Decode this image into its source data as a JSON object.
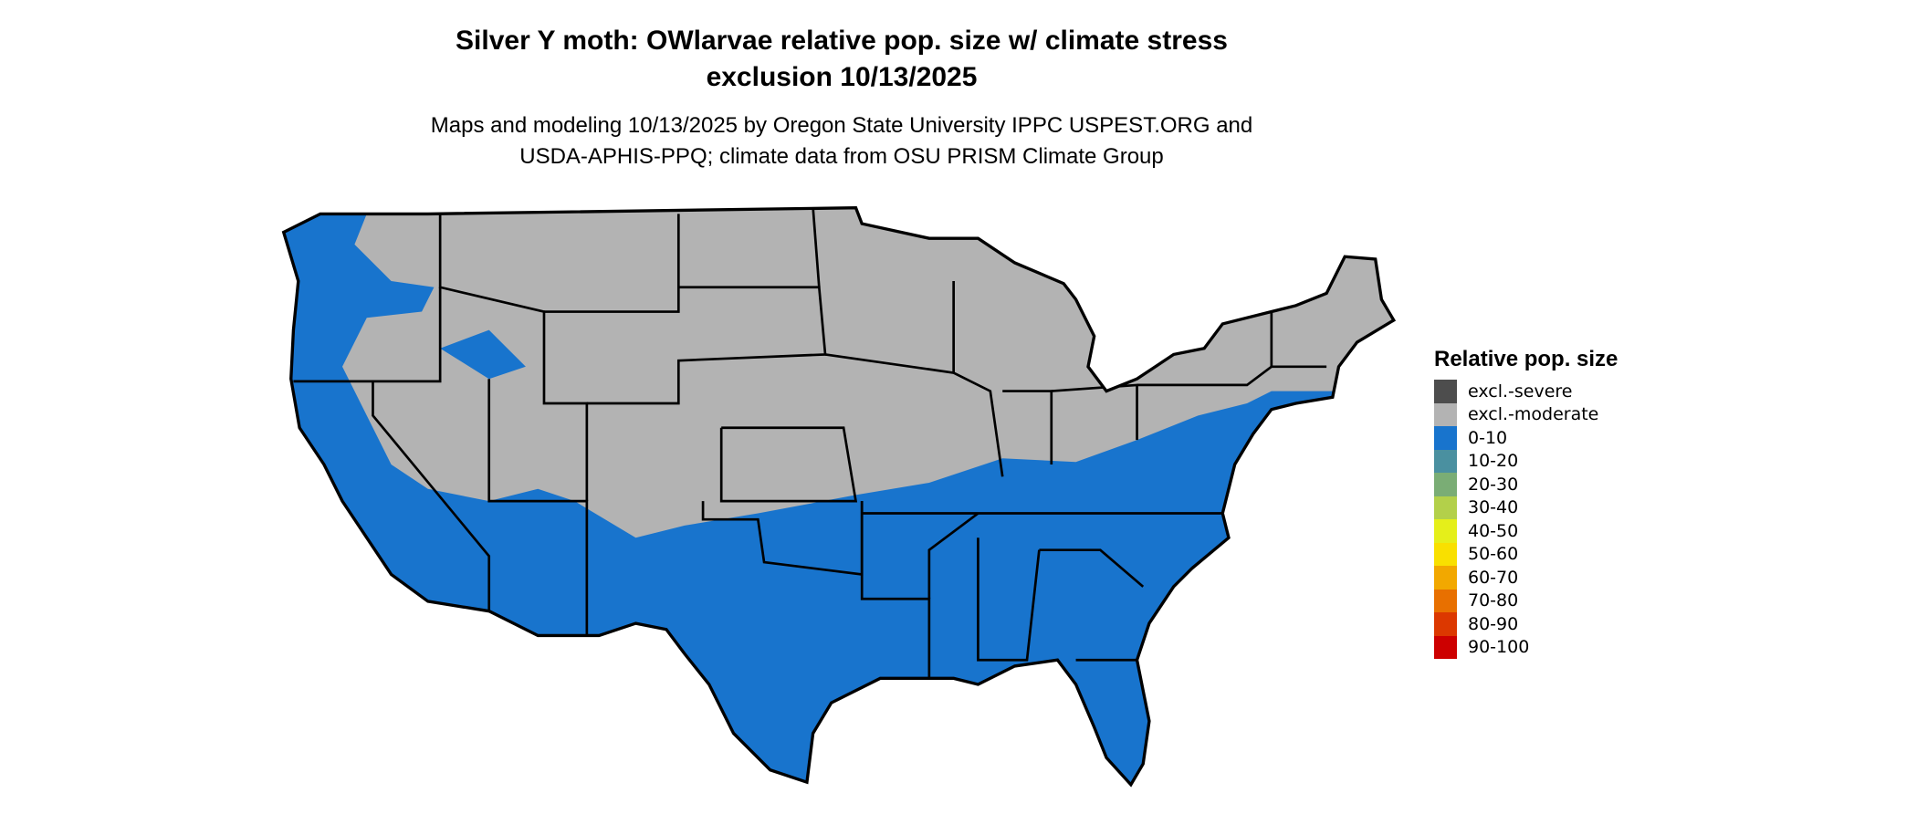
{
  "title_line1": "Silver Y moth: OWlarvae relative pop. size w/ climate stress",
  "title_line2": "exclusion 10/13/2025",
  "subtitle_line1": "Maps and modeling 10/13/2025 by Oregon State University IPPC USPEST.ORG and",
  "subtitle_line2": "USDA-APHIS-PPQ; climate data from OSU PRISM Climate Group",
  "map": {
    "region": "Contiguous United States",
    "dominant_categories": [
      "excl.-moderate",
      "0-10"
    ]
  },
  "legend": {
    "title": "Relative pop. size",
    "items": [
      {
        "label": "excl.-severe",
        "color": "#4d4d4d"
      },
      {
        "label": "excl.-moderate",
        "color": "#b3b3b3"
      },
      {
        "label": "0-10",
        "color": "#1874cd"
      },
      {
        "label": "10-20",
        "color": "#4a90a0"
      },
      {
        "label": "20-30",
        "color": "#7aad75"
      },
      {
        "label": "30-40",
        "color": "#b3d04a"
      },
      {
        "label": "40-50",
        "color": "#e5ef1a"
      },
      {
        "label": "50-60",
        "color": "#f9e000"
      },
      {
        "label": "60-70",
        "color": "#f2a800"
      },
      {
        "label": "70-80",
        "color": "#e87000"
      },
      {
        "label": "80-90",
        "color": "#dc3800"
      },
      {
        "label": "90-100",
        "color": "#cd0000"
      }
    ]
  }
}
